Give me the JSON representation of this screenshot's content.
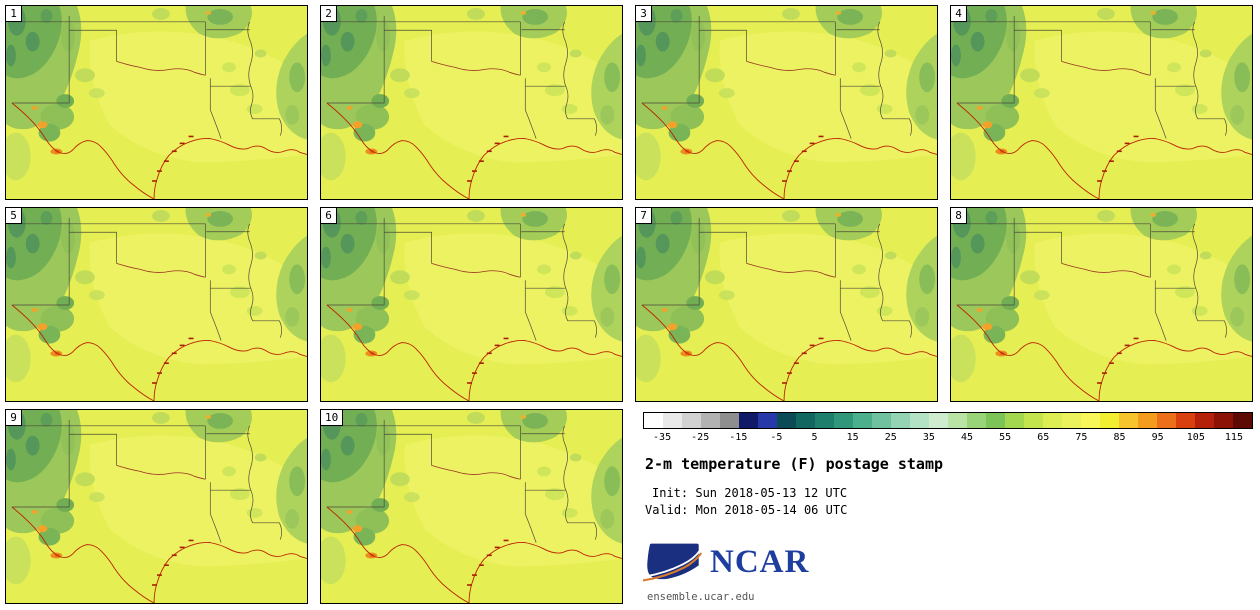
{
  "chart_data": {
    "type": "heatmap",
    "title": "2-m temperature (F) postage stamp",
    "subtitle_lines": {
      "init": "Init: Sun 2018-05-13 12 UTC",
      "valid": "Valid: Mon 2018-05-14 06 UTC"
    },
    "panels": [
      "1",
      "2",
      "3",
      "4",
      "5",
      "6",
      "7",
      "8",
      "9",
      "10"
    ],
    "units": "F",
    "region": "Texas / southern plains map panels",
    "colorbar": {
      "orientation": "horizontal",
      "ticks": [
        "-35",
        "-25",
        "-15",
        "-5",
        "5",
        "15",
        "25",
        "35",
        "45",
        "55",
        "65",
        "75",
        "85",
        "95",
        "105",
        "115"
      ],
      "colors": [
        "#ffffff",
        "#e9e9e9",
        "#d2d2d2",
        "#b2b2b2",
        "#8e8e8e",
        "#101a68",
        "#2738a8",
        "#0b4b55",
        "#126760",
        "#1e806c",
        "#30977a",
        "#4bae8d",
        "#70c19f",
        "#94d3b3",
        "#b4e2c5",
        "#cfeccf",
        "#b9e4a6",
        "#99d478",
        "#7cc457",
        "#a3d74f",
        "#c4e44e",
        "#dcee52",
        "#ebf25c",
        "#f8f75a",
        "#f2ef30",
        "#f6c52e",
        "#f49c1e",
        "#ee6f1a",
        "#d8400f",
        "#b5200a",
        "#8c1206",
        "#5e0a04"
      ]
    },
    "visible_value_range_estimate": [
      45,
      95
    ]
  },
  "footer": {
    "logo_text": "NCAR",
    "site": "ensemble.ucar.edu",
    "logo_blue": "#1b2f80",
    "logo_orange": "#d97b2e"
  }
}
